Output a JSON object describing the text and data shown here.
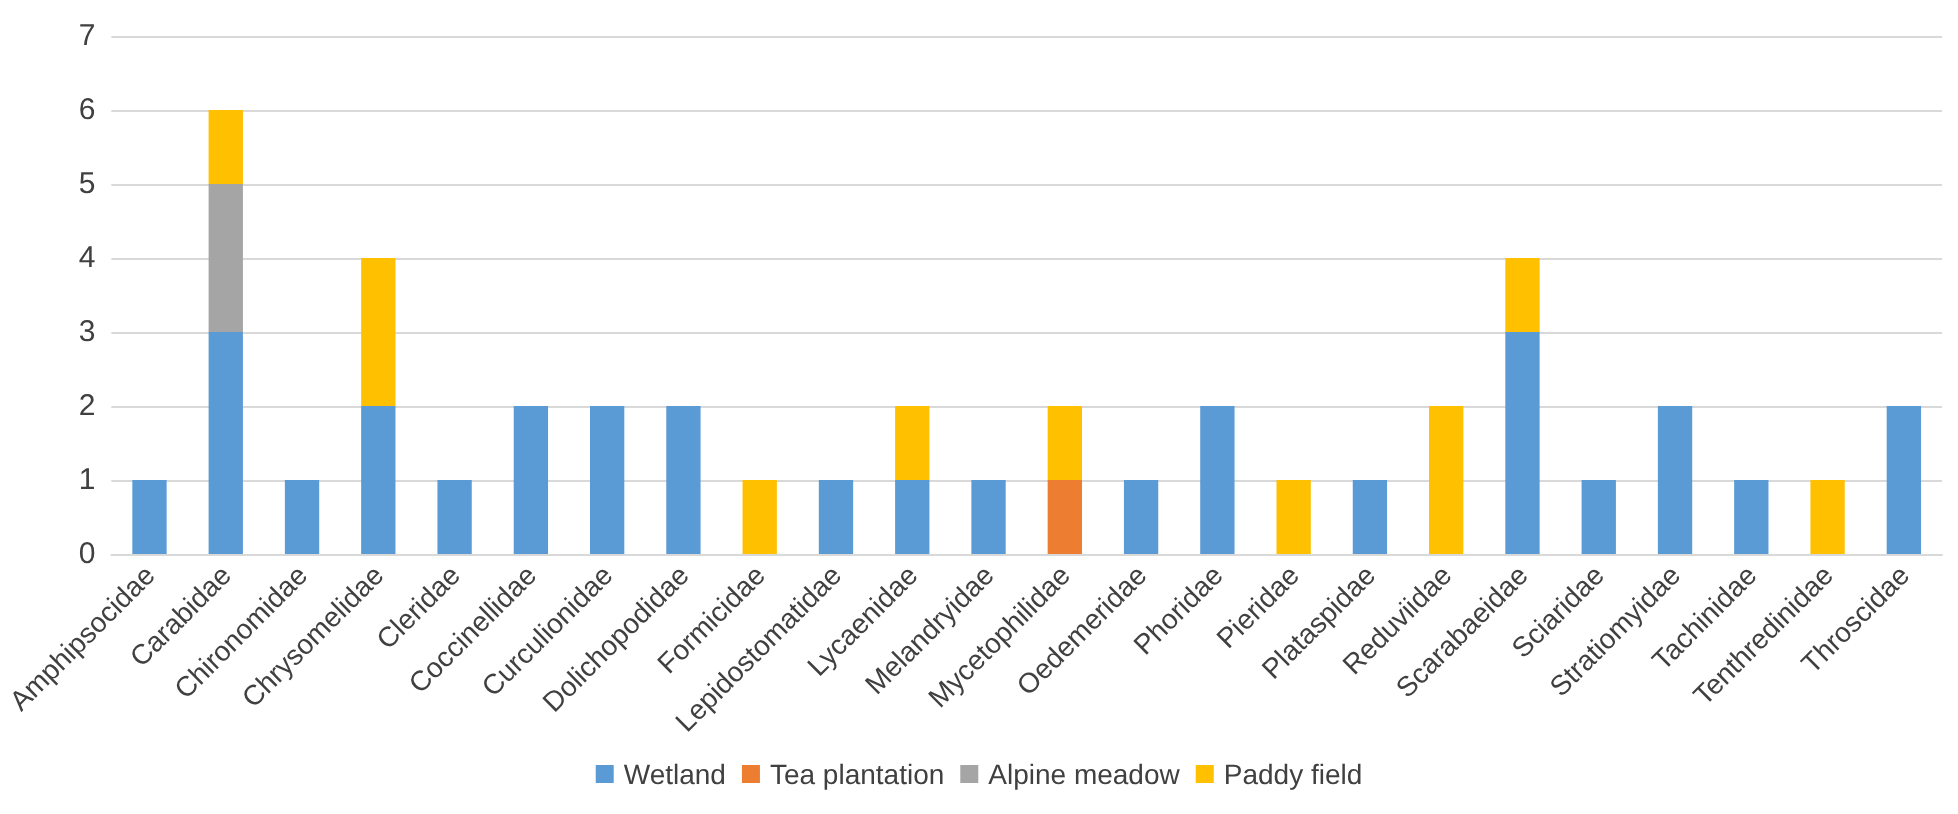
{
  "chart_data": {
    "type": "bar",
    "stacked": true,
    "categories": [
      "Amphipsocidae",
      "Carabidae",
      "Chironomidae",
      "Chrysomelidae",
      "Cleridae",
      "Coccinellidae",
      "Curculionidae",
      "Dolichopodidae",
      "Formicidae",
      "Lepidostomatidae",
      "Lycaenidae",
      "Melandryidae",
      "Mycetophilidae",
      "Oedemeridae",
      "Phoridae",
      "Pieridae",
      "Plataspidae",
      "Reduviidae",
      "Scarabaeidae",
      "Sciaridae",
      "Stratiomyidae",
      "Tachinidae",
      "Tenthredinidae",
      "Throscidae"
    ],
    "series": [
      {
        "name": "Wetland",
        "color": "#5b9bd5",
        "values": [
          1,
          3,
          1,
          2,
          1,
          2,
          2,
          2,
          null,
          1,
          1,
          1,
          null,
          1,
          2,
          null,
          1,
          null,
          3,
          1,
          2,
          1,
          null,
          2
        ]
      },
      {
        "name": "Tea plantation",
        "color": "#ed7d31",
        "values": [
          null,
          null,
          null,
          null,
          null,
          null,
          null,
          null,
          null,
          null,
          null,
          null,
          1,
          null,
          null,
          null,
          null,
          null,
          null,
          null,
          null,
          null,
          null,
          null
        ]
      },
      {
        "name": "Alpine meadow",
        "color": "#a5a5a5",
        "values": [
          null,
          2,
          null,
          null,
          null,
          null,
          null,
          null,
          null,
          null,
          null,
          null,
          null,
          null,
          null,
          null,
          null,
          null,
          null,
          null,
          null,
          null,
          null,
          null
        ]
      },
      {
        "name": "Paddy field",
        "color": "#ffc000",
        "values": [
          null,
          1,
          null,
          2,
          null,
          null,
          null,
          null,
          1,
          null,
          1,
          null,
          1,
          null,
          null,
          1,
          null,
          2,
          1,
          null,
          null,
          null,
          1,
          null
        ]
      }
    ],
    "ylim": [
      0,
      7
    ],
    "yticks": [
      0,
      1,
      2,
      3,
      4,
      5,
      6,
      7
    ],
    "grid": "y",
    "legend": "bottom"
  }
}
